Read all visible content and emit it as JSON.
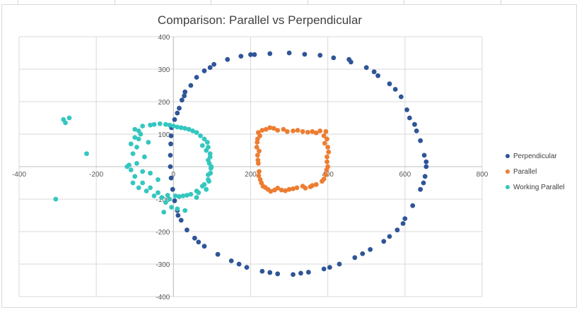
{
  "chart_data": {
    "type": "scatter",
    "title": "Comparison: Parallel vs Perpendicular",
    "xlim": [
      -400,
      800
    ],
    "ylim": [
      -400,
      400
    ],
    "x_ticks": [
      -400,
      -200,
      0,
      200,
      400,
      600,
      800
    ],
    "y_ticks": [
      -400,
      -300,
      -200,
      -100,
      0,
      100,
      200,
      300,
      400
    ],
    "grid": true,
    "legend_position": "right",
    "series": [
      {
        "name": "Perpendicular",
        "color": "#2f5597",
        "points": [
          [
            -5,
            120
          ],
          [
            3,
            145
          ],
          [
            10,
            165
          ],
          [
            15,
            180
          ],
          [
            22,
            205
          ],
          [
            30,
            230
          ],
          [
            45,
            250
          ],
          [
            60,
            275
          ],
          [
            80,
            295
          ],
          [
            105,
            315
          ],
          [
            140,
            330
          ],
          [
            175,
            340
          ],
          [
            210,
            345
          ],
          [
            250,
            348
          ],
          [
            300,
            350
          ],
          [
            340,
            346
          ],
          [
            380,
            343
          ],
          [
            415,
            335
          ],
          [
            460,
            322
          ],
          [
            500,
            305
          ],
          [
            530,
            280
          ],
          [
            560,
            255
          ],
          [
            590,
            215
          ],
          [
            605,
            175
          ],
          [
            625,
            130
          ],
          [
            640,
            80
          ],
          [
            650,
            35
          ],
          [
            655,
            0
          ],
          [
            652,
            -30
          ],
          [
            640,
            -70
          ],
          [
            620,
            -120
          ],
          [
            600,
            -160
          ],
          [
            580,
            -195
          ],
          [
            545,
            -230
          ],
          [
            510,
            -255
          ],
          [
            470,
            -280
          ],
          [
            430,
            -300
          ],
          [
            390,
            -315
          ],
          [
            350,
            -325
          ],
          [
            310,
            -332
          ],
          [
            270,
            -330
          ],
          [
            230,
            -322
          ],
          [
            190,
            -310
          ],
          [
            150,
            -290
          ],
          [
            115,
            -270
          ],
          [
            80,
            -245
          ],
          [
            55,
            -220
          ],
          [
            35,
            -195
          ],
          [
            20,
            -165
          ],
          [
            10,
            -135
          ],
          [
            3,
            -105
          ],
          [
            -2,
            -70
          ],
          [
            -6,
            -35
          ],
          [
            -8,
            0
          ],
          [
            -8,
            35
          ],
          [
            -7,
            70
          ],
          [
            -6,
            95
          ],
          [
            200,
            345
          ],
          [
            455,
            330
          ],
          [
            575,
            238
          ],
          [
            630,
            110
          ],
          [
            648,
            -50
          ],
          [
            595,
            -175
          ],
          [
            490,
            -268
          ],
          [
            330,
            -328
          ],
          [
            170,
            -300
          ],
          [
            65,
            -232
          ],
          [
            12,
            -150
          ],
          [
            95,
            305
          ],
          [
            520,
            292
          ],
          [
            612,
            150
          ],
          [
            560,
            -215
          ],
          [
            250,
            -326
          ],
          [
            28,
            218
          ],
          [
            655,
            15
          ],
          [
            405,
            -310
          ]
        ]
      },
      {
        "name": "Parallel",
        "color": "#ed7d31",
        "points": [
          [
            220,
            105
          ],
          [
            240,
            115
          ],
          [
            260,
            118
          ],
          [
            285,
            115
          ],
          [
            310,
            110
          ],
          [
            335,
            108
          ],
          [
            360,
            108
          ],
          [
            380,
            110
          ],
          [
            395,
            108
          ],
          [
            398,
            85
          ],
          [
            400,
            60
          ],
          [
            398,
            30
          ],
          [
            400,
            0
          ],
          [
            395,
            -25
          ],
          [
            385,
            -45
          ],
          [
            370,
            -55
          ],
          [
            355,
            -62
          ],
          [
            335,
            -60
          ],
          [
            320,
            -65
          ],
          [
            300,
            -70
          ],
          [
            280,
            -72
          ],
          [
            262,
            -72
          ],
          [
            245,
            -70
          ],
          [
            232,
            -60
          ],
          [
            225,
            -40
          ],
          [
            222,
            -15
          ],
          [
            220,
            10
          ],
          [
            218,
            35
          ],
          [
            216,
            60
          ],
          [
            218,
            85
          ],
          [
            230,
            112
          ],
          [
            250,
            120
          ],
          [
            270,
            112
          ],
          [
            295,
            108
          ],
          [
            322,
            112
          ],
          [
            348,
            106
          ],
          [
            370,
            104
          ],
          [
            390,
            95
          ],
          [
            402,
            45
          ],
          [
            397,
            -10
          ],
          [
            390,
            -38
          ],
          [
            360,
            -58
          ],
          [
            342,
            -66
          ],
          [
            310,
            -68
          ],
          [
            290,
            -74
          ],
          [
            270,
            -66
          ],
          [
            252,
            -76
          ],
          [
            238,
            -64
          ],
          [
            228,
            -50
          ],
          [
            221,
            -28
          ],
          [
            219,
            20
          ],
          [
            222,
            48
          ],
          [
            217,
            75
          ],
          [
            224,
            95
          ],
          [
            392,
            72
          ],
          [
            398,
            15
          ]
        ]
      },
      {
        "name": "Working Parallel",
        "color": "#34c7c0",
        "points": [
          [
            -270,
            150
          ],
          [
            -285,
            145
          ],
          [
            -280,
            135
          ],
          [
            -225,
            40
          ],
          [
            -305,
            -100
          ],
          [
            -100,
            115
          ],
          [
            -80,
            125
          ],
          [
            -50,
            130
          ],
          [
            -20,
            130
          ],
          [
            0,
            125
          ],
          [
            20,
            120
          ],
          [
            40,
            115
          ],
          [
            60,
            105
          ],
          [
            80,
            85
          ],
          [
            90,
            60
          ],
          [
            95,
            30
          ],
          [
            98,
            0
          ],
          [
            96,
            -20
          ],
          [
            90,
            -40
          ],
          [
            75,
            -60
          ],
          [
            60,
            -75
          ],
          [
            45,
            -85
          ],
          [
            25,
            -90
          ],
          [
            5,
            -90
          ],
          [
            -15,
            -88
          ],
          [
            -40,
            -80
          ],
          [
            -60,
            -65
          ],
          [
            -80,
            -50
          ],
          [
            -100,
            -30
          ],
          [
            -110,
            -10
          ],
          [
            -115,
            5
          ],
          [
            -105,
            40
          ],
          [
            -95,
            60
          ],
          [
            -90,
            85
          ],
          [
            -85,
            100
          ],
          [
            -75,
            30
          ],
          [
            -65,
            75
          ],
          [
            -60,
            -20
          ],
          [
            -40,
            -40
          ],
          [
            -20,
            -110
          ],
          [
            -5,
            -125
          ],
          [
            10,
            -130
          ],
          [
            30,
            -135
          ],
          [
            -25,
            -140
          ],
          [
            -10,
            -100
          ],
          [
            60,
            -95
          ],
          [
            85,
            -70
          ],
          [
            92,
            -45
          ],
          [
            97,
            -5
          ],
          [
            95,
            40
          ],
          [
            88,
            75
          ],
          [
            70,
            95
          ],
          [
            50,
            110
          ],
          [
            30,
            118
          ],
          [
            10,
            122
          ],
          [
            -10,
            128
          ],
          [
            -35,
            132
          ],
          [
            -60,
            128
          ],
          [
            -90,
            110
          ],
          [
            -100,
            90
          ],
          [
            -110,
            70
          ],
          [
            -105,
            -50
          ],
          [
            -90,
            -65
          ],
          [
            -70,
            -75
          ],
          [
            -50,
            -90
          ],
          [
            -30,
            -95
          ],
          [
            15,
            -92
          ],
          [
            35,
            -88
          ],
          [
            65,
            -80
          ],
          [
            80,
            -55
          ],
          [
            90,
            -25
          ],
          [
            93,
            10
          ],
          [
            90,
            20
          ],
          [
            85,
            50
          ],
          [
            75,
            65
          ],
          [
            -120,
            0
          ],
          [
            -95,
            10
          ],
          [
            -80,
            -15
          ]
        ]
      }
    ]
  }
}
